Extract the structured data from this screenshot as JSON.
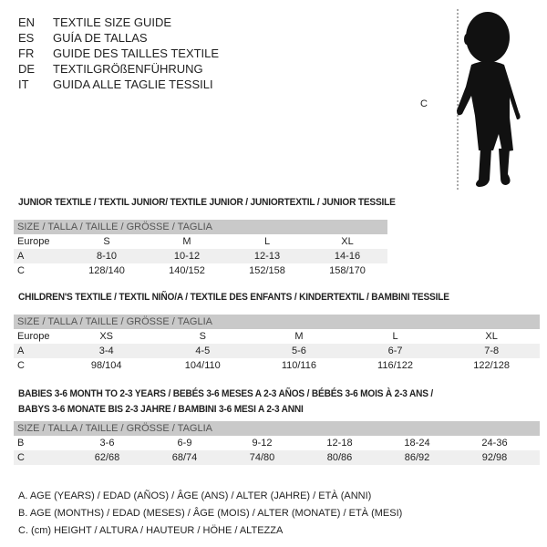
{
  "header": {
    "titles": [
      {
        "code": "EN",
        "title": "TEXTILE SIZE GUIDE"
      },
      {
        "code": "ES",
        "title": "GUÍA DE TALLAS"
      },
      {
        "code": "FR",
        "title": "GUIDE DES TAILLES TEXTILE"
      },
      {
        "code": "DE",
        "title": "TEXTILGRÖßENFÜHRUNG"
      },
      {
        "code": "IT",
        "title": "GUIDA ALLE TAGLIE TESSILI"
      }
    ]
  },
  "figure": {
    "label": "C",
    "icon": "child-silhouette"
  },
  "junior": {
    "title": "JUNIOR TEXTILE / TEXTIL JUNIOR/ TEXTILE JUNIOR / JUNIORTEXTIL / JUNIOR TESSILE",
    "header": "SIZE / TALLA / TAILLE / GRÖSSE / TAGLIA",
    "rows": [
      {
        "label": "Europe",
        "cells": [
          "S",
          "M",
          "L",
          "XL"
        ]
      },
      {
        "label": "A",
        "cells": [
          "8-10",
          "10-12",
          "12-13",
          "14-16"
        ]
      },
      {
        "label": "C",
        "cells": [
          "128/140",
          "140/152",
          "152/158",
          "158/170"
        ]
      }
    ]
  },
  "children": {
    "title": "CHILDREN'S TEXTILE / TEXTIL NIÑO/A / TEXTILE DES ENFANTS / KINDERTEXTIL / BAMBINI TESSILE",
    "header": "SIZE / TALLA / TAILLE / GRÖSSE / TAGLIA",
    "rows": [
      {
        "label": "Europe",
        "cells": [
          "XS",
          "S",
          "M",
          "L",
          "XL"
        ]
      },
      {
        "label": "A",
        "cells": [
          "3-4",
          "4-5",
          "5-6",
          "6-7",
          "7-8"
        ]
      },
      {
        "label": "C",
        "cells": [
          "98/104",
          "104/110",
          "110/116",
          "116/122",
          "122/128"
        ]
      }
    ]
  },
  "babies": {
    "title_line1": "BABIES 3-6 MONTH TO 2-3 YEARS / BEBÉS 3-6 MESES A 2-3 AÑOS / BÉBÉS 3-6 MOIS À 2-3 ANS /",
    "title_line2": "BABYS 3-6 MONATE BIS 2-3 JAHRE / BAMBINI 3-6 MESI A 2-3 ANNI",
    "header": "SIZE / TALLA / TAILLE / GRÖSSE / TAGLIA",
    "rows": [
      {
        "label": "B",
        "cells": [
          "3-6",
          "6-9",
          "9-12",
          "12-18",
          "18-24",
          "24-36"
        ]
      },
      {
        "label": "C",
        "cells": [
          "62/68",
          "68/74",
          "74/80",
          "80/86",
          "86/92",
          "92/98"
        ]
      }
    ]
  },
  "legend": [
    "A. AGE (YEARS) / EDAD (AÑOS) / ÂGE (ANS) / ALTER (JAHRE) / ETÀ (ANNI)",
    "B. AGE (MONTHS) / EDAD (MESES) / ÂGE (MOIS) / ALTER (MONATE) / ETÀ (MESI)",
    "C. (cm) HEIGHT / ALTURA / HAUTEUR / HÖHE / ALTEZZA"
  ],
  "colors": {
    "header_band": "#c9c9c9",
    "shade_row": "#efefef",
    "text": "#222222"
  }
}
